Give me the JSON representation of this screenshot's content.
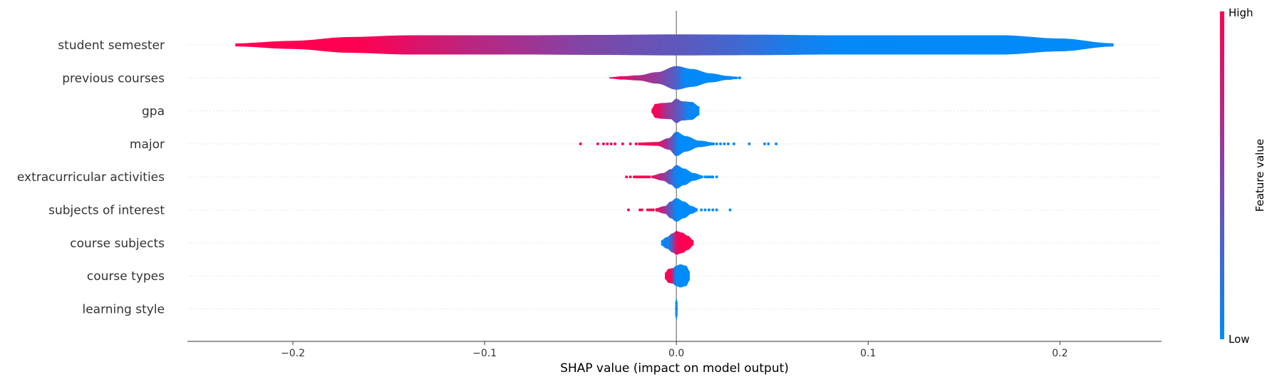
{
  "chart_data": {
    "type": "violin",
    "xlabel": "SHAP value (impact on model output)",
    "xlim": [
      -0.255,
      0.253
    ],
    "x_ticks": [
      -0.2,
      -0.1,
      0.0,
      0.1,
      0.2
    ],
    "x_tick_labels": [
      "−0.2",
      "−0.1",
      "0.0",
      "0.1",
      "0.2"
    ],
    "grid": true,
    "colorbar": {
      "label": "Feature value",
      "high_label": "High",
      "low_label": "Low",
      "low_color": "#008bfb",
      "high_color": "#ff0052"
    },
    "features": [
      {
        "name": "student semester",
        "shape": "wide",
        "min": -0.23,
        "max": 0.228,
        "profile": [
          [
            -0.23,
            0.12
          ],
          [
            -0.2,
            0.32
          ],
          [
            -0.17,
            0.62
          ],
          [
            -0.14,
            0.75
          ],
          [
            -0.11,
            0.75
          ],
          [
            -0.08,
            0.75
          ],
          [
            -0.04,
            0.78
          ],
          [
            0,
            0.82
          ],
          [
            0.04,
            0.8
          ],
          [
            0.08,
            0.75
          ],
          [
            0.13,
            0.75
          ],
          [
            0.17,
            0.75
          ],
          [
            0.2,
            0.5
          ],
          [
            0.228,
            0.12
          ]
        ],
        "color_stops": [
          [
            -0.23,
            1
          ],
          [
            -0.165,
            1
          ],
          [
            -0.135,
            0.86
          ],
          [
            -0.11,
            0.74
          ],
          [
            -0.08,
            0.64
          ],
          [
            -0.053,
            0.52
          ],
          [
            -0.025,
            0.44
          ],
          [
            0.004,
            0.36
          ],
          [
            0.03,
            0.26
          ],
          [
            0.058,
            0.1
          ],
          [
            0.085,
            0.02
          ],
          [
            0.228,
            0
          ]
        ],
        "dots_high": [],
        "dots_low": []
      },
      {
        "name": "previous courses",
        "min": -0.035,
        "max": 0.033,
        "profile": [
          [
            -0.035,
            0.05
          ],
          [
            -0.028,
            0.13
          ],
          [
            -0.02,
            0.2
          ],
          [
            -0.01,
            0.45
          ],
          [
            0,
            0.92
          ],
          [
            0.008,
            0.7
          ],
          [
            0.018,
            0.35
          ],
          [
            0.027,
            0.15
          ],
          [
            0.033,
            0.05
          ]
        ],
        "color_stops": [
          [
            -0.035,
            1
          ],
          [
            -0.028,
            0.9
          ],
          [
            -0.02,
            0.72
          ],
          [
            -0.01,
            0.55
          ],
          [
            0,
            0.3
          ],
          [
            0.004,
            0.02
          ],
          [
            0.033,
            0
          ]
        ],
        "dots_high": [],
        "dots_low": [
          0.031,
          0.033
        ]
      },
      {
        "name": "gpa",
        "min": -0.013,
        "max": 0.012,
        "profile": [
          [
            -0.013,
            0.15
          ],
          [
            -0.011,
            0.55
          ],
          [
            -0.007,
            0.62
          ],
          [
            -0.003,
            0.65
          ],
          [
            0,
            0.95
          ],
          [
            0.003,
            0.75
          ],
          [
            0.008,
            0.7
          ],
          [
            0.012,
            0.35
          ]
        ],
        "color_stops": [
          [
            -0.013,
            1
          ],
          [
            -0.009,
            0.9
          ],
          [
            -0.005,
            0.6
          ],
          [
            -0.001,
            0.45
          ],
          [
            0.002,
            0.3
          ],
          [
            0.006,
            0.05
          ],
          [
            0.012,
            0
          ]
        ],
        "dots_high": [],
        "dots_low": []
      },
      {
        "name": "major",
        "min": -0.02,
        "max": 0.02,
        "profile": [
          [
            -0.02,
            0.1
          ],
          [
            -0.01,
            0.15
          ],
          [
            -0.004,
            0.45
          ],
          [
            0,
            0.95
          ],
          [
            0.005,
            0.6
          ],
          [
            0.012,
            0.25
          ],
          [
            0.02,
            0.1
          ]
        ],
        "color_stops": [
          [
            -0.02,
            1
          ],
          [
            -0.012,
            0.95
          ],
          [
            -0.006,
            0.7
          ],
          [
            -0.002,
            0.35
          ],
          [
            0.001,
            0
          ],
          [
            0.02,
            0
          ]
        ],
        "dots_high": [
          -0.05,
          -0.041,
          -0.038,
          -0.036,
          -0.034,
          -0.032,
          -0.028,
          -0.024,
          -0.021,
          -0.019,
          -0.017,
          -0.015,
          -0.013,
          -0.011,
          -0.009
        ],
        "dots_low": [
          0.015,
          0.017,
          0.019,
          0.021,
          0.023,
          0.025,
          0.027,
          0.03,
          0.038,
          0.046,
          0.048,
          0.052
        ]
      },
      {
        "name": "extracurricular activities",
        "min": -0.013,
        "max": 0.014,
        "profile": [
          [
            -0.013,
            0.1
          ],
          [
            -0.007,
            0.3
          ],
          [
            -0.003,
            0.6
          ],
          [
            0,
            0.92
          ],
          [
            0.004,
            0.65
          ],
          [
            0.009,
            0.3
          ],
          [
            0.014,
            0.1
          ]
        ],
        "color_stops": [
          [
            -0.013,
            0.95
          ],
          [
            -0.008,
            0.7
          ],
          [
            -0.004,
            0.4
          ],
          [
            -0.001,
            0.1
          ],
          [
            0.002,
            0
          ],
          [
            0.014,
            0
          ]
        ],
        "dots_high": [
          -0.026,
          -0.024,
          -0.022,
          -0.021,
          -0.02,
          -0.019,
          -0.018,
          -0.017,
          -0.016,
          -0.015,
          -0.014
        ],
        "dots_low": [
          0.015,
          0.016,
          0.017,
          0.018,
          0.019,
          0.021
        ]
      },
      {
        "name": "subjects of interest",
        "min": -0.011,
        "max": 0.011,
        "profile": [
          [
            -0.011,
            0.12
          ],
          [
            -0.006,
            0.3
          ],
          [
            -0.003,
            0.65
          ],
          [
            0,
            0.92
          ],
          [
            0.004,
            0.65
          ],
          [
            0.008,
            0.3
          ],
          [
            0.011,
            0.12
          ]
        ],
        "color_stops": [
          [
            -0.011,
            0.95
          ],
          [
            -0.007,
            0.7
          ],
          [
            -0.003,
            0.3
          ],
          [
            0,
            0
          ],
          [
            0.011,
            0
          ]
        ],
        "dots_high": [
          -0.025,
          -0.019,
          -0.018,
          -0.015,
          -0.014,
          -0.013,
          -0.012
        ],
        "dots_low": [
          0.013,
          0.015,
          0.017,
          0.019,
          0.021,
          0.028
        ]
      },
      {
        "name": "course subjects",
        "min": -0.008,
        "max": 0.009,
        "profile": [
          [
            -0.008,
            0.2
          ],
          [
            -0.005,
            0.45
          ],
          [
            -0.002,
            0.75
          ],
          [
            0,
            0.92
          ],
          [
            0.003,
            0.8
          ],
          [
            0.006,
            0.55
          ],
          [
            0.009,
            0.2
          ]
        ],
        "color_stops": [
          [
            -0.008,
            0
          ],
          [
            -0.004,
            0.1
          ],
          [
            -0.002,
            0.45
          ],
          [
            0,
            0.9
          ],
          [
            0.002,
            1
          ],
          [
            0.009,
            1
          ]
        ],
        "dots_high": [],
        "dots_low": []
      },
      {
        "name": "course types",
        "min": -0.006,
        "max": 0.007,
        "profile": [
          [
            -0.006,
            0.25
          ],
          [
            -0.004,
            0.55
          ],
          [
            -0.002,
            0.6
          ],
          [
            0,
            0.8
          ],
          [
            0.002,
            0.9
          ],
          [
            0.005,
            0.8
          ],
          [
            0.007,
            0.35
          ]
        ],
        "color_stops": [
          [
            -0.006,
            1
          ],
          [
            -0.003,
            0.95
          ],
          [
            -0.002,
            0.7
          ],
          [
            -0.001,
            0.2
          ],
          [
            0,
            0
          ],
          [
            0.007,
            0
          ]
        ],
        "dots_high": [],
        "dots_low": []
      },
      {
        "name": "learning style",
        "min": -0.0006,
        "max": 0.0006,
        "profile": [
          [
            -0.0006,
            0.55
          ],
          [
            0,
            0.85
          ],
          [
            0.0006,
            0.55
          ]
        ],
        "color_stops": [
          [
            -0.0006,
            0
          ],
          [
            0.0006,
            0
          ]
        ],
        "dots_high": [],
        "dots_low": [
          0.0
        ]
      }
    ]
  }
}
